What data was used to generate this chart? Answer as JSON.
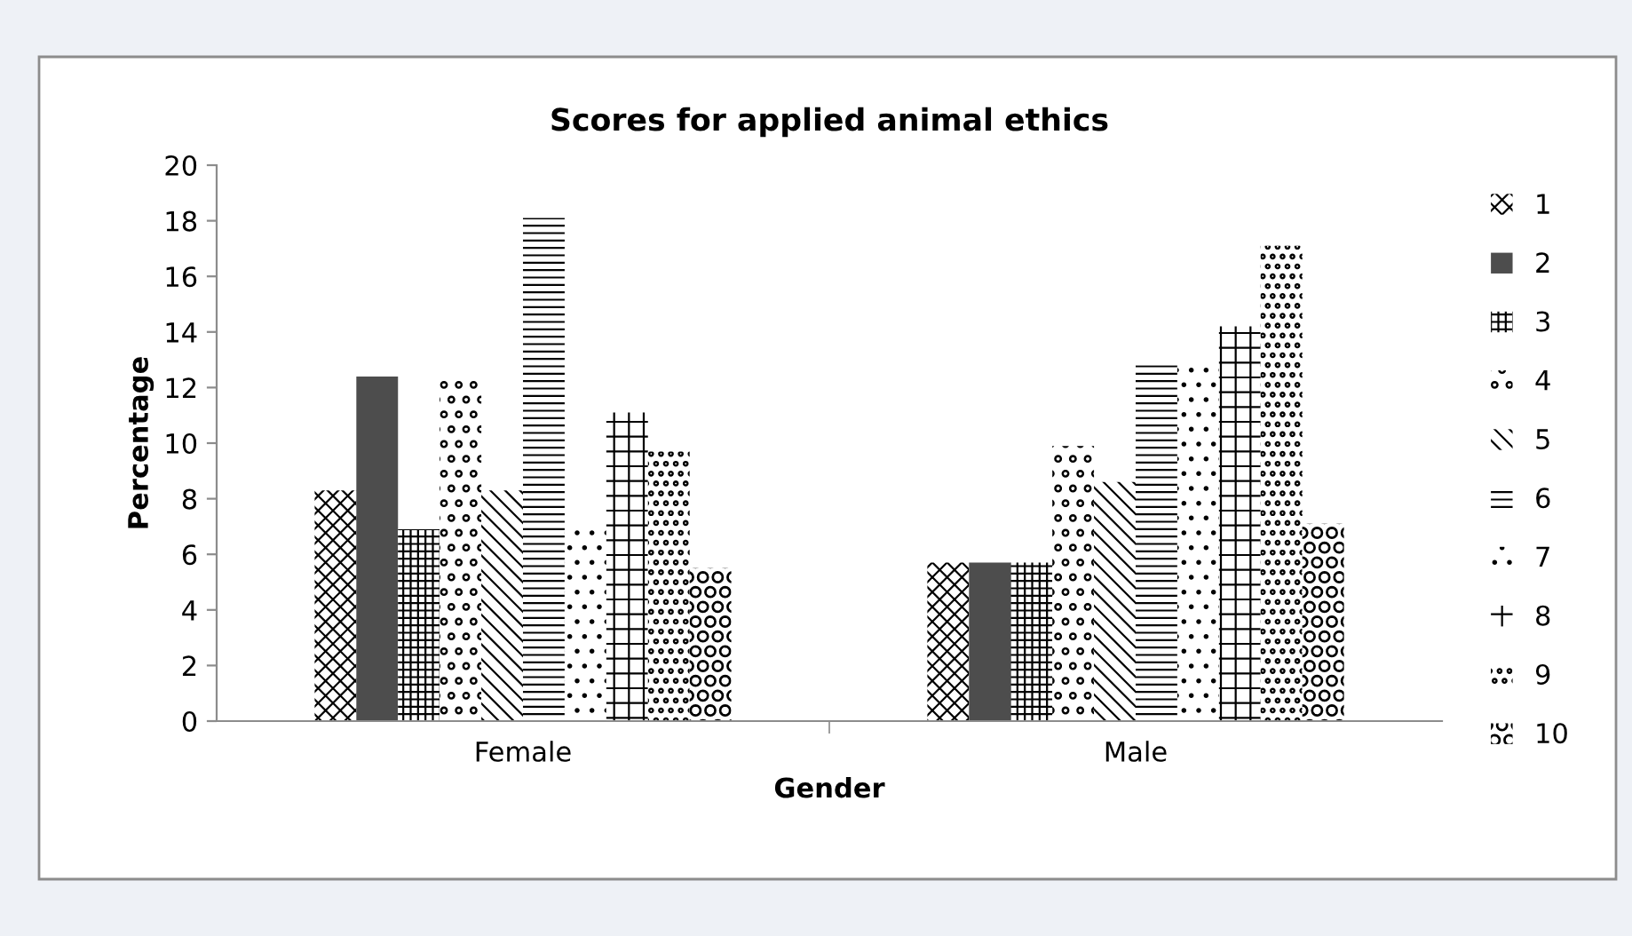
{
  "chart_data": {
    "type": "bar",
    "title": "Scores for applied animal ethics",
    "xlabel": "Gender",
    "ylabel": "Percentage",
    "categories": [
      "Female",
      "Male"
    ],
    "series": [
      {
        "name": "1",
        "color": "#000000",
        "values": [
          8.3,
          5.7
        ]
      },
      {
        "name": "2",
        "color": "#4d4d4d",
        "values": [
          12.4,
          5.7
        ]
      },
      {
        "name": "3",
        "color": "#000000",
        "values": [
          6.9,
          5.7
        ]
      },
      {
        "name": "4",
        "color": "#000000",
        "values": [
          12.4,
          9.9
        ]
      },
      {
        "name": "5",
        "color": "#000000",
        "values": [
          8.3,
          8.6
        ]
      },
      {
        "name": "6",
        "color": "#000000",
        "values": [
          18.1,
          12.8
        ]
      },
      {
        "name": "7",
        "color": "#000000",
        "values": [
          6.9,
          12.8
        ]
      },
      {
        "name": "8",
        "color": "#000000",
        "values": [
          11.1,
          14.2
        ]
      },
      {
        "name": "9",
        "color": "#000000",
        "values": [
          9.7,
          17.1
        ]
      },
      {
        "name": "10",
        "color": "#000000",
        "values": [
          5.5,
          7.1
        ]
      }
    ],
    "ylim": [
      0,
      20
    ],
    "yticks": [
      0,
      2,
      4,
      6,
      8,
      10,
      12,
      14,
      16,
      18,
      20
    ],
    "grid": false,
    "legend": "right"
  }
}
